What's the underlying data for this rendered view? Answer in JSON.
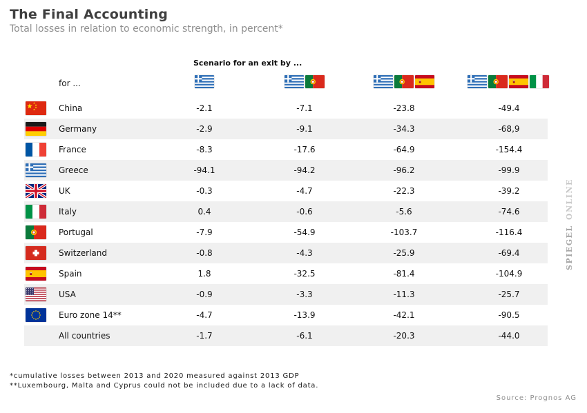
{
  "page": {
    "title": "The Final Accounting",
    "subtitle": "Total losses in relation to economic strength, in percent*",
    "footnotes": [
      "*cumulative losses between 2013 and 2020 measured against 2013 GDP",
      "**Luxembourg, Malta and Cyprus could not be included due to a lack of data."
    ],
    "source": "Source: Prognos AG",
    "watermark": {
      "spiegel": "SPIEGEL",
      "online": "ONLINE"
    },
    "colors": {
      "row_stripe": "#f0f0f0",
      "title_text": "#3f3f3f",
      "muted_text": "#8f8f8f"
    }
  },
  "table": {
    "scenario_header": "Scenario for an exit by ...",
    "row_axis_label": "for ...",
    "scenarios": [
      {
        "label": "exit by Greece",
        "flags": [
          "greece"
        ]
      },
      {
        "label": "exit by Greece and Portugal",
        "flags": [
          "greece",
          "portugal"
        ]
      },
      {
        "label": "exit by Greece, Portugal and Spain",
        "flags": [
          "greece",
          "portugal",
          "spain"
        ]
      },
      {
        "label": "exit by Greece, Portugal, Spain and Italy",
        "flags": [
          "greece",
          "portugal",
          "spain",
          "italy"
        ]
      }
    ],
    "rows": [
      {
        "flag": "china",
        "country": "China",
        "values": [
          "-2.1",
          "-7.1",
          "-23.8",
          "-49.4"
        ]
      },
      {
        "flag": "germany",
        "country": "Germany",
        "values": [
          "-2.9",
          "-9.1",
          "-34.3",
          "-68,9"
        ]
      },
      {
        "flag": "france",
        "country": "France",
        "values": [
          "-8.3",
          "-17.6",
          "-64.9",
          "-154.4"
        ]
      },
      {
        "flag": "greece",
        "country": "Greece",
        "values": [
          "-94.1",
          "-94.2",
          "-96.2",
          "-99.9"
        ]
      },
      {
        "flag": "uk",
        "country": "UK",
        "values": [
          "-0.3",
          "-4.7",
          "-22.3",
          "-39.2"
        ]
      },
      {
        "flag": "italy",
        "country": "Italy",
        "values": [
          "0.4",
          "-0.6",
          "-5.6",
          "-74.6"
        ]
      },
      {
        "flag": "portugal",
        "country": "Portugal",
        "values": [
          "-7.9",
          "-54.9",
          "-103.7",
          "-116.4"
        ]
      },
      {
        "flag": "switzerland",
        "country": "Switzerland",
        "values": [
          "-0.8",
          "-4.3",
          "-25.9",
          "-69.4"
        ]
      },
      {
        "flag": "spain",
        "country": "Spain",
        "values": [
          "1.8",
          "-32.5",
          "-81.4",
          "-104.9"
        ]
      },
      {
        "flag": "usa",
        "country": "USA",
        "values": [
          "-0.9",
          "-3.3",
          "-11.3",
          "-25.7"
        ]
      },
      {
        "flag": "eu",
        "country": "Euro zone 14**",
        "values": [
          "-4.7",
          "-13.9",
          "-42.1",
          "-90.5"
        ]
      },
      {
        "flag": null,
        "country": "All countries",
        "values": [
          "-1.7",
          "-6.1",
          "-20.3",
          "-44.0"
        ]
      }
    ]
  },
  "chart_data": {
    "type": "table",
    "title": "The Final Accounting",
    "subtitle": "Total losses in relation to economic strength, in percent*",
    "columns": [
      "Exit by Greece",
      "Exit by Greece + Portugal",
      "Exit by Greece + Portugal + Spain",
      "Exit by Greece + Portugal + Spain + Italy"
    ],
    "rows": [
      {
        "country": "China",
        "values": [
          -2.1,
          -7.1,
          -23.8,
          -49.4
        ]
      },
      {
        "country": "Germany",
        "values": [
          -2.9,
          -9.1,
          -34.3,
          -68.9
        ]
      },
      {
        "country": "France",
        "values": [
          -8.3,
          -17.6,
          -64.9,
          -154.4
        ]
      },
      {
        "country": "Greece",
        "values": [
          -94.1,
          -94.2,
          -96.2,
          -99.9
        ]
      },
      {
        "country": "UK",
        "values": [
          -0.3,
          -4.7,
          -22.3,
          -39.2
        ]
      },
      {
        "country": "Italy",
        "values": [
          0.4,
          -0.6,
          -5.6,
          -74.6
        ]
      },
      {
        "country": "Portugal",
        "values": [
          -7.9,
          -54.9,
          -103.7,
          -116.4
        ]
      },
      {
        "country": "Switzerland",
        "values": [
          -0.8,
          -4.3,
          -25.9,
          -69.4
        ]
      },
      {
        "country": "Spain",
        "values": [
          1.8,
          -32.5,
          -81.4,
          -104.9
        ]
      },
      {
        "country": "USA",
        "values": [
          -0.9,
          -3.3,
          -11.3,
          -25.7
        ]
      },
      {
        "country": "Euro zone 14**",
        "values": [
          -4.7,
          -13.9,
          -42.1,
          -90.5
        ]
      },
      {
        "country": "All countries",
        "values": [
          -1.7,
          -6.1,
          -20.3,
          -44.0
        ]
      }
    ],
    "unit": "percent of 2013 GDP",
    "source": "Prognos AG"
  }
}
